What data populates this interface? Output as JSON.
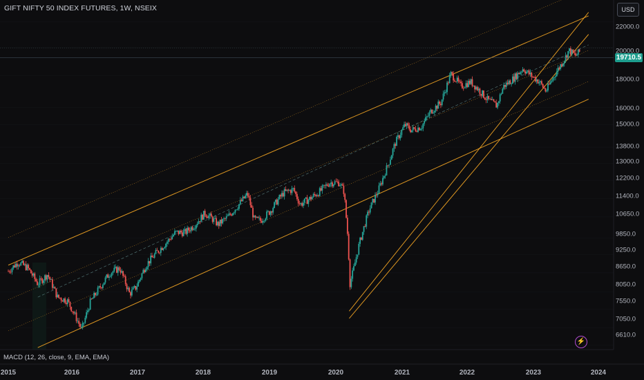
{
  "header": {
    "symbol_title": "GIFT NIFTY 50 INDEX FUTURES, 1W, NSEIX",
    "currency": "USD"
  },
  "price_axis": {
    "labels": [
      "22000.0",
      "20000.0",
      "18000.0",
      "16000.0",
      "15000.0",
      "13800.0",
      "13000.0",
      "12200.0",
      "11400.0",
      "10650.0",
      "9850.0",
      "9250.0",
      "8650.0",
      "8050.0",
      "7550.0",
      "7050.0",
      "6610.0"
    ],
    "last_price": "19710.5"
  },
  "time_axis": {
    "labels": [
      "2015",
      "2016",
      "2017",
      "2018",
      "2019",
      "2020",
      "2021",
      "2022",
      "2023",
      "2024"
    ]
  },
  "indicator": {
    "label": "MACD (12, 26, close, 9, EMA, EMA)"
  },
  "colors": {
    "up": "#26a69a",
    "down": "#ef5350",
    "channel": "#f5a623",
    "background": "#0d0d0f",
    "last_price": "#1e9e8e"
  },
  "chart_data": {
    "type": "candlestick",
    "title": "GIFT NIFTY 50 INDEX FUTURES, 1W, NSEIX",
    "scale": "log",
    "y_range": [
      6500,
      23500
    ],
    "x_range": [
      2015.0,
      2024.1
    ],
    "last_price": 19710.5,
    "x": [
      2015.0,
      2015.15,
      2015.3,
      2015.45,
      2015.6,
      2015.75,
      2015.9,
      2016.0,
      2016.12,
      2016.25,
      2016.4,
      2016.55,
      2016.7,
      2016.85,
      2016.95,
      2017.1,
      2017.25,
      2017.4,
      2017.55,
      2017.7,
      2017.85,
      2018.0,
      2018.1,
      2018.2,
      2018.35,
      2018.5,
      2018.65,
      2018.75,
      2018.85,
      2019.0,
      2019.1,
      2019.2,
      2019.35,
      2019.45,
      2019.6,
      2019.75,
      2019.9,
      2020.05,
      2020.12,
      2020.18,
      2020.21,
      2020.26,
      2020.35,
      2020.5,
      2020.65,
      2020.8,
      2020.9,
      2021.05,
      2021.15,
      2021.3,
      2021.45,
      2021.6,
      2021.75,
      2021.82,
      2021.9,
      2022.05,
      2022.15,
      2022.3,
      2022.45,
      2022.55,
      2022.7,
      2022.85,
      2022.95,
      2023.1,
      2023.2,
      2023.35,
      2023.5,
      2023.55,
      2023.65,
      2023.72
    ],
    "close": [
      8700,
      9000,
      8800,
      8300,
      8600,
      7900,
      7800,
      7450,
      7000,
      7750,
      8200,
      8650,
      8800,
      8000,
      8200,
      8900,
      9300,
      9650,
      10050,
      10050,
      10350,
      10800,
      10600,
      10350,
      10650,
      11100,
      11600,
      10550,
      10500,
      10900,
      11300,
      11650,
      11800,
      11150,
      11400,
      11700,
      12100,
      12100,
      11700,
      9800,
      8300,
      8700,
      9600,
      10900,
      11800,
      13000,
      14000,
      15000,
      14700,
      14900,
      15800,
      16300,
      18100,
      17800,
      17300,
      17600,
      17200,
      16500,
      16100,
      17300,
      17800,
      18500,
      18100,
      17600,
      17000,
      18200,
      19300,
      19800,
      19400,
      19710.5
    ],
    "channels": [
      {
        "name": "",
        "x": [
          2015.0,
          2023.85
        ],
        "y": [
          8900,
          22500
        ]
      },
      {
        "name": "",
        "x": [
          2015.45,
          2023.85
        ],
        "y": [
          6550,
          16500
        ]
      },
      {
        "name": "",
        "x": [
          2020.2,
          2023.85
        ],
        "y": [
          7500,
          22800
        ]
      },
      {
        "name": "",
        "x": [
          2020.2,
          2023.85
        ],
        "y": [
          7300,
          21000
        ]
      }
    ]
  }
}
